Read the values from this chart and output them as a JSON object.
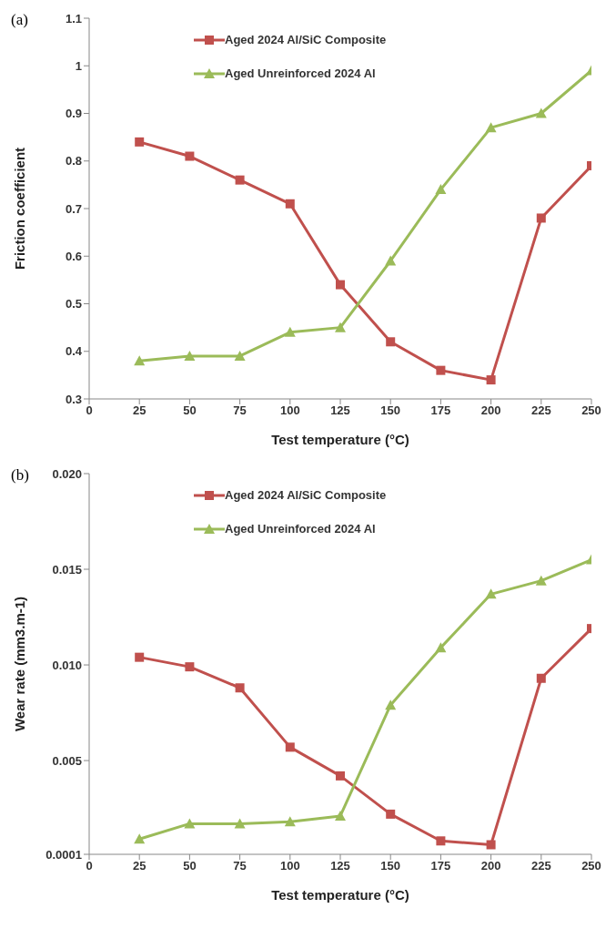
{
  "chart_data": [
    {
      "type": "line",
      "annotations": [
        "(a)"
      ],
      "xlabel": "Test temperature (°C)",
      "ylabel": "Friction coefficient",
      "x": [
        25,
        50,
        75,
        100,
        125,
        150,
        175,
        200,
        225,
        250
      ],
      "xlim": [
        0,
        250
      ],
      "xticks": [
        0,
        25,
        50,
        75,
        100,
        125,
        150,
        175,
        200,
        225,
        250
      ],
      "ylim": [
        0.3,
        1.1
      ],
      "yticks": [
        0.3,
        0.4,
        0.5,
        0.6,
        0.7,
        0.8,
        0.9,
        1,
        1.1
      ],
      "grid": false,
      "legend": "top left",
      "series": [
        {
          "name": "Aged 2024 Al/SiC Composite",
          "color": "#c0504d",
          "marker": "square",
          "values": [
            0.84,
            0.81,
            0.76,
            0.71,
            0.54,
            0.42,
            0.36,
            0.34,
            0.68,
            0.79
          ]
        },
        {
          "name": "Aged Unreinforced 2024 Al",
          "color": "#9bbb59",
          "marker": "triangle",
          "values": [
            0.38,
            0.39,
            0.39,
            0.44,
            0.45,
            0.59,
            0.74,
            0.87,
            0.9,
            0.99
          ]
        }
      ]
    },
    {
      "type": "line",
      "annotations": [
        "(b)"
      ],
      "xlabel": "Test temperature (°C)",
      "ylabel": "Wear rate (mm3.m-1)",
      "x": [
        25,
        50,
        75,
        100,
        125,
        150,
        175,
        200,
        225,
        250
      ],
      "xlim": [
        0,
        250
      ],
      "xticks": [
        0,
        25,
        50,
        75,
        100,
        125,
        150,
        175,
        200,
        225,
        250
      ],
      "ylim": [
        0.0001,
        0.02
      ],
      "yticks": [
        0.0001,
        0.005,
        {
          "value": 0.01,
          "label": "0.010"
        },
        0.015,
        {
          "value": 0.02,
          "label": "0.020"
        }
      ],
      "grid": false,
      "legend": "top left",
      "series": [
        {
          "name": "Aged 2024 Al/SiC Composite",
          "color": "#c0504d",
          "marker": "square",
          "values": [
            0.0104,
            0.0099,
            0.0088,
            0.0057,
            0.0042,
            0.0022,
            0.0008,
            0.0006,
            0.0093,
            0.0119
          ]
        },
        {
          "name": "Aged Unreinforced 2024 Al",
          "color": "#9bbb59",
          "marker": "triangle",
          "values": [
            0.0009,
            0.0017,
            0.0017,
            0.0018,
            0.0021,
            0.0079,
            0.0109,
            0.0137,
            0.0144,
            0.0155
          ]
        }
      ]
    }
  ]
}
